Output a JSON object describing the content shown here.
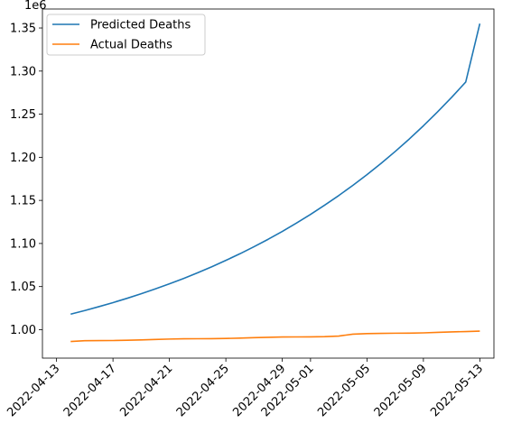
{
  "chart_data": {
    "type": "line",
    "title": "",
    "xlabel": "",
    "ylabel": "",
    "y_offset_label": "1e6",
    "ylim": [
      967000,
      1372000
    ],
    "xlim": [
      "2022-04-12",
      "2022-05-14"
    ],
    "x_ticks": [
      "2022-04-13",
      "2022-04-17",
      "2022-04-21",
      "2022-04-25",
      "2022-04-29",
      "2022-05-01",
      "2022-05-05",
      "2022-05-09",
      "2022-05-13"
    ],
    "y_ticks": [
      1.0,
      1.05,
      1.1,
      1.15,
      1.2,
      1.25,
      1.3,
      1.35
    ],
    "y_tick_labels": [
      "1.00",
      "1.05",
      "1.10",
      "1.15",
      "1.20",
      "1.25",
      "1.30",
      "1.35"
    ],
    "legend_position": "upper-left",
    "series": [
      {
        "name": "Predicted Deaths",
        "color": "#1f77b4",
        "x": [
          "2022-04-14",
          "2022-04-15",
          "2022-04-16",
          "2022-04-17",
          "2022-04-18",
          "2022-04-19",
          "2022-04-20",
          "2022-04-21",
          "2022-04-22",
          "2022-04-23",
          "2022-04-24",
          "2022-04-25",
          "2022-04-26",
          "2022-04-27",
          "2022-04-28",
          "2022-04-29",
          "2022-04-30",
          "2022-05-01",
          "2022-05-02",
          "2022-05-03",
          "2022-05-04",
          "2022-05-05",
          "2022-05-06",
          "2022-05-07",
          "2022-05-08",
          "2022-05-09",
          "2022-05-10",
          "2022-05-11",
          "2022-05-12",
          "2022-05-13"
        ],
        "y": [
          1018000,
          1022200,
          1026700,
          1031400,
          1036400,
          1041700,
          1047300,
          1053200,
          1059400,
          1066000,
          1073000,
          1080400,
          1088100,
          1096300,
          1104900,
          1114000,
          1123600,
          1133700,
          1144400,
          1155600,
          1167400,
          1179800,
          1192900,
          1206700,
          1221200,
          1236500,
          1252600,
          1269500,
          1287300,
          1355000
        ]
      },
      {
        "name": "Actual Deaths",
        "color": "#ff7f0e",
        "x": [
          "2022-04-14",
          "2022-04-15",
          "2022-04-16",
          "2022-04-17",
          "2022-04-18",
          "2022-04-19",
          "2022-04-20",
          "2022-04-21",
          "2022-04-22",
          "2022-04-23",
          "2022-04-24",
          "2022-04-25",
          "2022-04-26",
          "2022-04-27",
          "2022-04-28",
          "2022-04-29",
          "2022-04-30",
          "2022-05-01",
          "2022-05-02",
          "2022-05-03",
          "2022-05-04",
          "2022-05-05",
          "2022-05-06",
          "2022-05-07",
          "2022-05-08",
          "2022-05-09",
          "2022-05-10",
          "2022-05-11",
          "2022-05-12",
          "2022-05-13"
        ],
        "y": [
          986300,
          987200,
          987300,
          987400,
          987700,
          988100,
          988600,
          989100,
          989400,
          989500,
          989600,
          989800,
          990200,
          990700,
          991100,
          991500,
          991600,
          991700,
          991900,
          992600,
          994800,
          995400,
          995700,
          995900,
          996000,
          996300,
          996900,
          997400,
          997800,
          998300
        ]
      }
    ]
  }
}
